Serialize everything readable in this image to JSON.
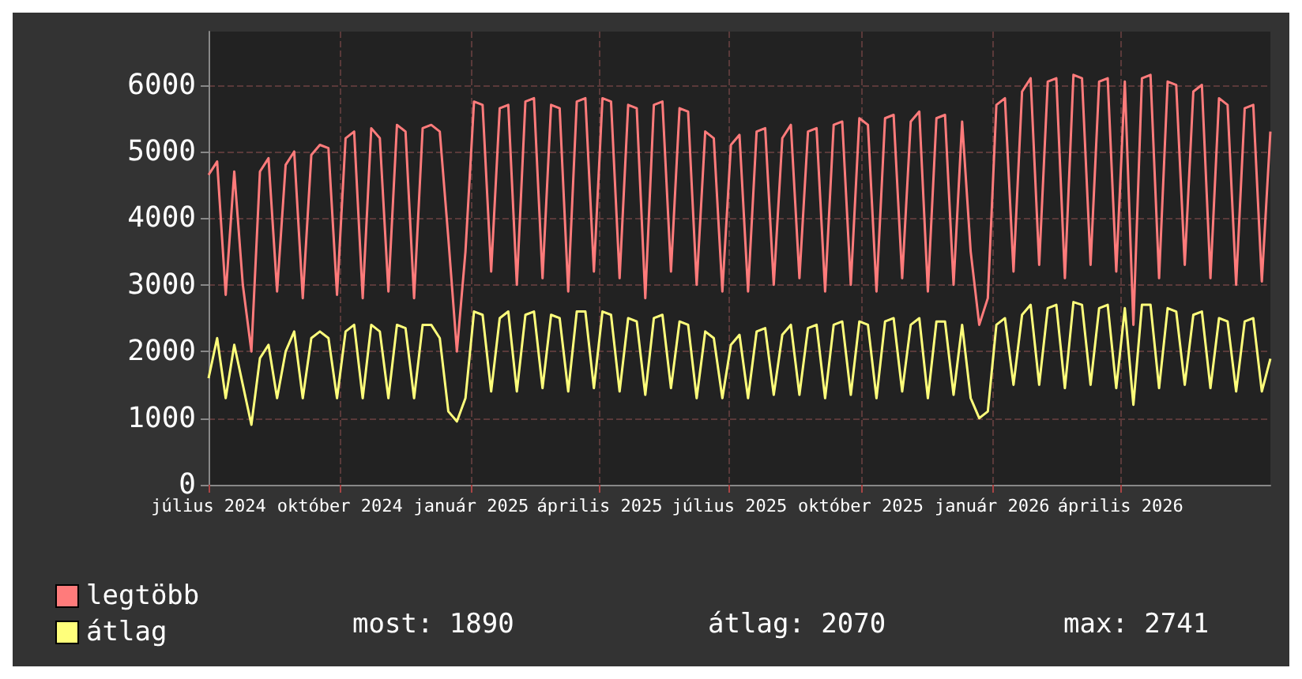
{
  "chart_data": {
    "type": "line",
    "x": [
      "2024-07-01",
      "2024-07-07",
      "2024-07-13",
      "2024-07-19",
      "2024-07-25",
      "2024-07-31",
      "2024-08-06",
      "2024-08-12",
      "2024-08-18",
      "2024-08-24",
      "2024-08-30",
      "2024-09-05",
      "2024-09-11",
      "2024-09-17",
      "2024-09-23",
      "2024-09-29",
      "2024-10-05",
      "2024-10-11",
      "2024-10-17",
      "2024-10-23",
      "2024-10-29",
      "2024-11-04",
      "2024-11-10",
      "2024-11-16",
      "2024-11-22",
      "2024-11-28",
      "2024-12-04",
      "2024-12-10",
      "2024-12-16",
      "2024-12-22",
      "2024-12-28",
      "2025-01-03",
      "2025-01-09",
      "2025-01-15",
      "2025-01-21",
      "2025-01-27",
      "2025-02-02",
      "2025-02-08",
      "2025-02-14",
      "2025-02-20",
      "2025-02-26",
      "2025-03-04",
      "2025-03-10",
      "2025-03-16",
      "2025-03-22",
      "2025-03-28",
      "2025-04-03",
      "2025-04-09",
      "2025-04-15",
      "2025-04-21",
      "2025-04-27",
      "2025-05-03",
      "2025-05-09",
      "2025-05-15",
      "2025-05-21",
      "2025-05-27",
      "2025-06-02",
      "2025-06-08",
      "2025-06-14",
      "2025-06-20",
      "2025-06-26",
      "2025-07-02",
      "2025-07-08",
      "2025-07-14",
      "2025-07-20",
      "2025-07-26",
      "2025-08-01",
      "2025-08-07",
      "2025-08-13",
      "2025-08-19",
      "2025-08-25",
      "2025-08-31",
      "2025-09-06",
      "2025-09-12",
      "2025-09-18",
      "2025-09-24",
      "2025-09-30",
      "2025-10-06",
      "2025-10-12",
      "2025-10-18",
      "2025-10-24",
      "2025-10-30",
      "2025-11-05",
      "2025-11-11",
      "2025-11-17",
      "2025-11-23",
      "2025-11-29",
      "2025-12-05",
      "2025-12-11",
      "2025-12-17",
      "2025-12-23",
      "2025-12-29",
      "2026-01-04",
      "2026-01-10",
      "2026-01-16",
      "2026-01-22",
      "2026-01-28",
      "2026-02-03",
      "2026-02-09",
      "2026-02-15",
      "2026-02-21",
      "2026-02-27",
      "2026-03-05",
      "2026-03-11",
      "2026-03-17",
      "2026-03-23",
      "2026-03-29",
      "2026-04-04",
      "2026-04-10",
      "2026-04-16",
      "2026-04-22",
      "2026-04-28",
      "2026-05-04",
      "2026-05-10",
      "2026-05-16",
      "2026-05-22",
      "2026-05-28",
      "2026-06-03",
      "2026-06-09",
      "2026-06-15",
      "2026-06-21",
      "2026-06-27",
      "2026-07-03",
      "2026-07-09",
      "2026-07-15"
    ],
    "series": [
      {
        "name": "legtöbb",
        "color": "#ff7b7b",
        "values": [
          4650,
          4850,
          2850,
          4700,
          3000,
          2000,
          4700,
          4900,
          2900,
          4800,
          5000,
          2800,
          4950,
          5100,
          5050,
          2850,
          5200,
          5300,
          2800,
          5350,
          5200,
          2900,
          5400,
          5300,
          2800,
          5350,
          5400,
          5300,
          3700,
          2000,
          3500,
          5750,
          5700,
          3200,
          5650,
          5700,
          3000,
          5750,
          5800,
          3100,
          5700,
          5650,
          2900,
          5750,
          5800,
          3200,
          5800,
          5750,
          3100,
          5700,
          5650,
          2800,
          5700,
          5750,
          3200,
          5650,
          5600,
          3000,
          5300,
          5200,
          2900,
          5100,
          5250,
          2900,
          5300,
          5350,
          3000,
          5200,
          5400,
          3100,
          5300,
          5350,
          2900,
          5400,
          5450,
          3000,
          5500,
          5400,
          2900,
          5500,
          5550,
          3100,
          5450,
          5600,
          2900,
          5500,
          5550,
          3000,
          5450,
          3500,
          2400,
          2800,
          5700,
          5800,
          3200,
          5900,
          6100,
          3300,
          6050,
          6100,
          3100,
          6150,
          6100,
          3300,
          6050,
          6100,
          3200,
          6050,
          2400,
          6100,
          6150,
          3100,
          6050,
          6000,
          3300,
          5900,
          6000,
          3100,
          5800,
          5700,
          3000,
          5650,
          5700,
          3050,
          5300
        ]
      },
      {
        "name": "átlag",
        "color": "#ffff7b",
        "values": [
          1600,
          2200,
          1300,
          2100,
          1500,
          900,
          1900,
          2100,
          1300,
          2000,
          2300,
          1300,
          2200,
          2300,
          2200,
          1300,
          2300,
          2400,
          1300,
          2400,
          2300,
          1300,
          2400,
          2350,
          1300,
          2400,
          2400,
          2200,
          1100,
          950,
          1300,
          2600,
          2550,
          1400,
          2500,
          2600,
          1400,
          2550,
          2600,
          1450,
          2550,
          2500,
          1400,
          2600,
          2600,
          1450,
          2600,
          2550,
          1400,
          2500,
          2450,
          1350,
          2500,
          2550,
          1450,
          2450,
          2400,
          1300,
          2300,
          2200,
          1300,
          2100,
          2250,
          1300,
          2300,
          2350,
          1350,
          2250,
          2400,
          1350,
          2350,
          2400,
          1300,
          2400,
          2450,
          1350,
          2450,
          2400,
          1300,
          2450,
          2500,
          1400,
          2400,
          2500,
          1300,
          2450,
          2450,
          1350,
          2400,
          1300,
          1000,
          1100,
          2400,
          2500,
          1500,
          2550,
          2700,
          1500,
          2650,
          2700,
          1450,
          2741,
          2700,
          1500,
          2650,
          2700,
          1450,
          2650,
          1200,
          2700,
          2700,
          1450,
          2650,
          2600,
          1500,
          2550,
          2600,
          1450,
          2500,
          2450,
          1400,
          2450,
          2500,
          1400,
          1890
        ]
      }
    ],
    "xlim": [
      "2024-07-01",
      "2026-07-15"
    ],
    "xticks": [
      {
        "value": "2024-07-01",
        "label": "július 2024"
      },
      {
        "value": "2024-10-01",
        "label": "október 2024"
      },
      {
        "value": "2025-01-01",
        "label": "január 2025"
      },
      {
        "value": "2025-04-01",
        "label": "április 2025"
      },
      {
        "value": "2025-07-01",
        "label": "július 2025"
      },
      {
        "value": "2025-10-01",
        "label": "október 2025"
      },
      {
        "value": "2026-01-01",
        "label": "január 2026"
      },
      {
        "value": "2026-04-01",
        "label": "április 2026"
      }
    ],
    "ylim": [
      0,
      6800
    ],
    "yticks": [
      0,
      1000,
      2000,
      3000,
      4000,
      5000,
      6000
    ],
    "grid": true,
    "legend": "bottom left",
    "marker": "none",
    "line_style": "solid",
    "annotations": [
      "most: 1890",
      "átlag: 2070",
      "max: 2741"
    ]
  }
}
